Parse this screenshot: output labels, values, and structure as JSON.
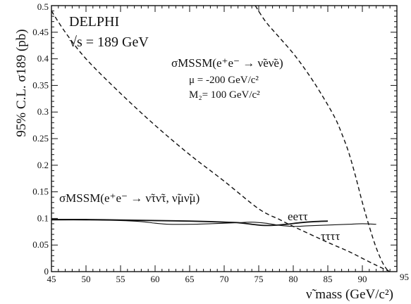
{
  "chart_data": {
    "type": "line",
    "title": "",
    "xlabel": "ν̃ mass (GeV/c²)",
    "ylabel": "95% C.L. σ189 (pb)",
    "xlim": [
      45,
      95
    ],
    "ylim": [
      0,
      0.5
    ],
    "x_ticks": [
      "45",
      "50",
      "55",
      "60",
      "65",
      "70",
      "75",
      "80",
      "85",
      "90",
      "95"
    ],
    "y_ticks": [
      "0",
      "0.05",
      "0.1",
      "0.15",
      "0.2",
      "0.25",
      "0.3",
      "0.35",
      "0.4",
      "0.45",
      "0.5"
    ],
    "grid": false,
    "annotations": {
      "experiment": "DELPHI",
      "energy": "√s = 189 GeV",
      "process_e": "σMSSM(e⁺e⁻ → ν̃eν̃e)",
      "mu": "μ = -200 GeV/c²",
      "m2": "M₂= 100 GeV/c²",
      "process_taumu": "σMSSM(e⁺e⁻ → ν̃τν̃τ, ν̃μν̃μ)"
    },
    "series": [
      {
        "name": "eeττ",
        "style": "solid",
        "x": [
          45,
          50,
          55,
          60,
          65,
          68,
          70,
          72,
          74,
          75.5,
          77,
          79,
          81,
          83,
          85
        ],
        "y": [
          0.098,
          0.098,
          0.097,
          0.096,
          0.095,
          0.094,
          0.093,
          0.092,
          0.089,
          0.087,
          0.087,
          0.089,
          0.092,
          0.094,
          0.095
        ]
      },
      {
        "name": "ττττ",
        "style": "solid",
        "x": [
          45,
          50,
          55,
          58,
          60,
          62,
          65,
          68,
          70,
          72,
          74,
          76,
          78,
          80,
          82,
          84,
          86,
          88,
          90,
          92
        ],
        "y": [
          0.097,
          0.097,
          0.096,
          0.094,
          0.091,
          0.089,
          0.089,
          0.09,
          0.091,
          0.092,
          0.093,
          0.091,
          0.087,
          0.085,
          0.086,
          0.087,
          0.088,
          0.089,
          0.09,
          0.089
        ]
      },
      {
        "name": "",
        "style": "dashed",
        "x": [
          45,
          47,
          50,
          55,
          60,
          65,
          70,
          75,
          78,
          80,
          85,
          88,
          90,
          92,
          94
        ],
        "y": [
          0.49,
          0.45,
          0.4,
          0.335,
          0.275,
          0.22,
          0.17,
          0.118,
          0.098,
          0.085,
          0.055,
          0.038,
          0.025,
          0.012,
          0.0
        ]
      },
      {
        "name": "",
        "style": "dashed",
        "x": [
          74.5,
          76,
          78,
          80,
          82,
          84,
          86,
          87,
          88,
          89,
          90,
          91,
          92,
          93,
          93.8
        ],
        "y": [
          0.5,
          0.47,
          0.44,
          0.41,
          0.375,
          0.335,
          0.29,
          0.26,
          0.225,
          0.18,
          0.13,
          0.085,
          0.045,
          0.015,
          0.0
        ]
      }
    ]
  }
}
